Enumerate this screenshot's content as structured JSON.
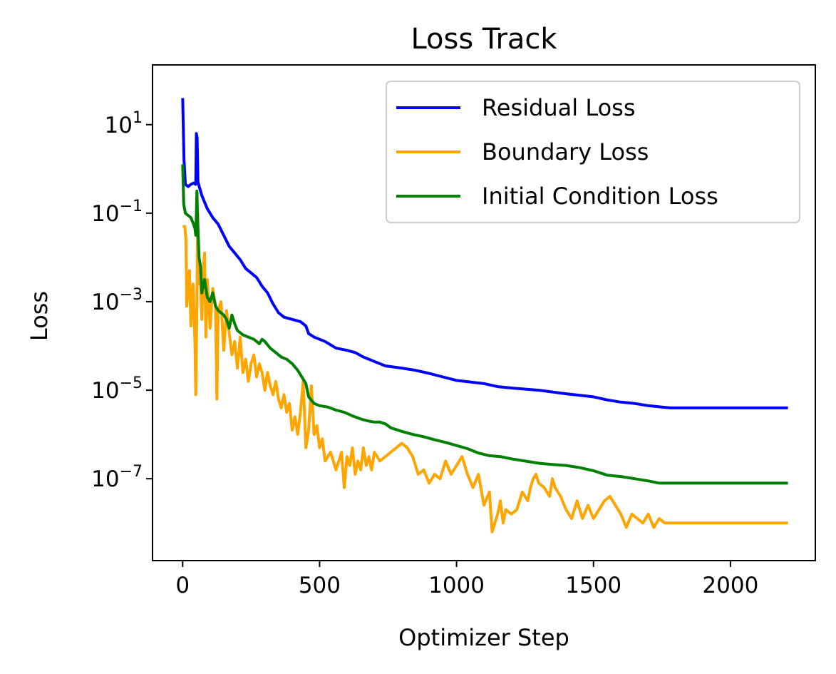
{
  "chart_data": {
    "type": "line",
    "title": "Loss Track",
    "xlabel": "Optimizer Step",
    "ylabel": "Loss",
    "yscale": "log",
    "xlim": [
      -110,
      2310
    ],
    "ylim_log10": [
      -8.85,
      2.35
    ],
    "xticks": [
      0,
      500,
      1000,
      1500,
      2000
    ],
    "xtick_labels": [
      "0",
      "500",
      "1000",
      "1500",
      "2000"
    ],
    "yticks": [
      {
        "value": 1,
        "base": "10",
        "exp": "1"
      },
      {
        "value": -1,
        "base": "10",
        "exp": "−1"
      },
      {
        "value": -3,
        "base": "10",
        "exp": "−3"
      },
      {
        "value": -5,
        "base": "10",
        "exp": "−5"
      },
      {
        "value": -7,
        "base": "10",
        "exp": "−7"
      }
    ],
    "legend_position": "top-right",
    "series": [
      {
        "name": "Residual Loss",
        "color": "#0000ff",
        "points": [
          [
            0,
            1.6
          ],
          [
            5,
            0.2
          ],
          [
            10,
            -0.35
          ],
          [
            20,
            -0.4
          ],
          [
            30,
            -0.35
          ],
          [
            40,
            -0.32
          ],
          [
            48,
            -0.35
          ],
          [
            50,
            0.8
          ],
          [
            53,
            0.7
          ],
          [
            56,
            -0.3
          ],
          [
            70,
            -0.6
          ],
          [
            90,
            -0.9
          ],
          [
            110,
            -1.1
          ],
          [
            130,
            -1.25
          ],
          [
            150,
            -1.5
          ],
          [
            170,
            -1.75
          ],
          [
            190,
            -1.9
          ],
          [
            210,
            -2.05
          ],
          [
            230,
            -2.25
          ],
          [
            250,
            -2.35
          ],
          [
            270,
            -2.45
          ],
          [
            290,
            -2.65
          ],
          [
            310,
            -2.8
          ],
          [
            330,
            -3.05
          ],
          [
            350,
            -3.25
          ],
          [
            370,
            -3.35
          ],
          [
            400,
            -3.4
          ],
          [
            430,
            -3.45
          ],
          [
            440,
            -3.5
          ],
          [
            450,
            -3.55
          ],
          [
            460,
            -3.72
          ],
          [
            480,
            -3.8
          ],
          [
            500,
            -3.85
          ],
          [
            520,
            -3.9
          ],
          [
            560,
            -4.05
          ],
          [
            600,
            -4.1
          ],
          [
            630,
            -4.15
          ],
          [
            660,
            -4.25
          ],
          [
            700,
            -4.35
          ],
          [
            740,
            -4.45
          ],
          [
            800,
            -4.5
          ],
          [
            850,
            -4.55
          ],
          [
            900,
            -4.62
          ],
          [
            950,
            -4.7
          ],
          [
            1000,
            -4.78
          ],
          [
            1100,
            -4.85
          ],
          [
            1150,
            -4.92
          ],
          [
            1200,
            -4.95
          ],
          [
            1300,
            -5.0
          ],
          [
            1400,
            -5.08
          ],
          [
            1500,
            -5.15
          ],
          [
            1550,
            -5.22
          ],
          [
            1600,
            -5.27
          ],
          [
            1650,
            -5.3
          ],
          [
            1700,
            -5.35
          ],
          [
            1750,
            -5.38
          ],
          [
            1780,
            -5.4
          ],
          [
            2210,
            -5.4
          ]
        ]
      },
      {
        "name": "Boundary Loss",
        "color": "#ffa500",
        "points": [
          [
            0,
            -1.3
          ],
          [
            8,
            -1.3
          ],
          [
            12,
            -1.6
          ],
          [
            15,
            -3.1
          ],
          [
            20,
            -2.7
          ],
          [
            25,
            -2.3
          ],
          [
            30,
            -3.55
          ],
          [
            38,
            -2.6
          ],
          [
            45,
            -4.0
          ],
          [
            48,
            -5.1
          ],
          [
            52,
            -3.0
          ],
          [
            55,
            -1.0
          ],
          [
            60,
            -2.6
          ],
          [
            65,
            -2.5
          ],
          [
            70,
            -3.4
          ],
          [
            75,
            -2.3
          ],
          [
            80,
            -1.9
          ],
          [
            85,
            -3.8
          ],
          [
            90,
            -2.5
          ],
          [
            100,
            -3.6
          ],
          [
            110,
            -2.7
          ],
          [
            120,
            -3.1
          ],
          [
            125,
            -5.2
          ],
          [
            130,
            -3.2
          ],
          [
            140,
            -3.0
          ],
          [
            150,
            -4.1
          ],
          [
            160,
            -3.2
          ],
          [
            170,
            -3.7
          ],
          [
            180,
            -4.2
          ],
          [
            190,
            -3.9
          ],
          [
            200,
            -4.5
          ],
          [
            210,
            -3.8
          ],
          [
            220,
            -4.6
          ],
          [
            230,
            -4.3
          ],
          [
            240,
            -4.8
          ],
          [
            250,
            -4.4
          ],
          [
            260,
            -4.2
          ],
          [
            270,
            -4.7
          ],
          [
            280,
            -4.4
          ],
          [
            290,
            -4.6
          ],
          [
            300,
            -5.0
          ],
          [
            310,
            -4.6
          ],
          [
            320,
            -4.9
          ],
          [
            330,
            -5.1
          ],
          [
            340,
            -4.8
          ],
          [
            350,
            -5.2
          ],
          [
            360,
            -5.4
          ],
          [
            370,
            -5.1
          ],
          [
            380,
            -5.5
          ],
          [
            390,
            -5.3
          ],
          [
            400,
            -5.9
          ],
          [
            410,
            -5.6
          ],
          [
            420,
            -6.0
          ],
          [
            430,
            -5.5
          ],
          [
            440,
            -4.8
          ],
          [
            450,
            -6.3
          ],
          [
            460,
            -5.9
          ],
          [
            470,
            -4.9
          ],
          [
            480,
            -6.0
          ],
          [
            490,
            -5.8
          ],
          [
            500,
            -6.3
          ],
          [
            510,
            -6.1
          ],
          [
            520,
            -6.6
          ],
          [
            540,
            -6.4
          ],
          [
            560,
            -6.8
          ],
          [
            580,
            -6.4
          ],
          [
            590,
            -7.2
          ],
          [
            600,
            -6.5
          ],
          [
            610,
            -6.7
          ],
          [
            620,
            -6.3
          ],
          [
            630,
            -6.9
          ],
          [
            640,
            -6.6
          ],
          [
            650,
            -6.8
          ],
          [
            660,
            -6.3
          ],
          [
            670,
            -6.7
          ],
          [
            680,
            -6.5
          ],
          [
            690,
            -6.8
          ],
          [
            700,
            -6.4
          ],
          [
            720,
            -6.6
          ],
          [
            740,
            -6.5
          ],
          [
            760,
            -6.4
          ],
          [
            780,
            -6.3
          ],
          [
            800,
            -6.2
          ],
          [
            820,
            -6.3
          ],
          [
            840,
            -6.5
          ],
          [
            860,
            -6.9
          ],
          [
            880,
            -6.8
          ],
          [
            900,
            -7.1
          ],
          [
            920,
            -6.9
          ],
          [
            940,
            -7.0
          ],
          [
            960,
            -6.6
          ],
          [
            980,
            -6.9
          ],
          [
            1000,
            -6.7
          ],
          [
            1020,
            -6.5
          ],
          [
            1040,
            -6.9
          ],
          [
            1060,
            -7.2
          ],
          [
            1080,
            -6.9
          ],
          [
            1100,
            -7.6
          ],
          [
            1120,
            -7.3
          ],
          [
            1130,
            -8.2
          ],
          [
            1150,
            -7.8
          ],
          [
            1160,
            -7.5
          ],
          [
            1170,
            -8.0
          ],
          [
            1180,
            -7.7
          ],
          [
            1200,
            -7.8
          ],
          [
            1220,
            -7.7
          ],
          [
            1240,
            -7.3
          ],
          [
            1260,
            -7.5
          ],
          [
            1270,
            -7.2
          ],
          [
            1280,
            -7.0
          ],
          [
            1290,
            -6.9
          ],
          [
            1300,
            -7.1
          ],
          [
            1320,
            -7.2
          ],
          [
            1340,
            -7.4
          ],
          [
            1350,
            -7.0
          ],
          [
            1360,
            -7.2
          ],
          [
            1380,
            -7.4
          ],
          [
            1400,
            -7.7
          ],
          [
            1420,
            -7.9
          ],
          [
            1440,
            -7.5
          ],
          [
            1460,
            -7.9
          ],
          [
            1480,
            -7.6
          ],
          [
            1500,
            -7.9
          ],
          [
            1520,
            -7.7
          ],
          [
            1540,
            -7.5
          ],
          [
            1560,
            -7.4
          ],
          [
            1580,
            -7.6
          ],
          [
            1600,
            -7.8
          ],
          [
            1620,
            -8.1
          ],
          [
            1640,
            -7.8
          ],
          [
            1660,
            -7.9
          ],
          [
            1680,
            -8.0
          ],
          [
            1700,
            -7.8
          ],
          [
            1720,
            -8.1
          ],
          [
            1740,
            -7.9
          ],
          [
            1760,
            -8.0
          ],
          [
            1780,
            -8.0
          ],
          [
            2210,
            -8.0
          ]
        ]
      },
      {
        "name": "Initial Condition Loss",
        "color": "#008000",
        "points": [
          [
            0,
            0.1
          ],
          [
            4,
            -0.8
          ],
          [
            10,
            -1.0
          ],
          [
            30,
            -1.1
          ],
          [
            40,
            -1.25
          ],
          [
            45,
            -1.35
          ],
          [
            48,
            -1.5
          ],
          [
            52,
            -0.5
          ],
          [
            55,
            -1.2
          ],
          [
            60,
            -2.0
          ],
          [
            65,
            -2.2
          ],
          [
            70,
            -2.8
          ],
          [
            80,
            -2.5
          ],
          [
            90,
            -2.9
          ],
          [
            100,
            -3.0
          ],
          [
            110,
            -2.8
          ],
          [
            120,
            -3.1
          ],
          [
            130,
            -3.2
          ],
          [
            150,
            -3.3
          ],
          [
            160,
            -3.4
          ],
          [
            170,
            -3.6
          ],
          [
            180,
            -3.3
          ],
          [
            190,
            -3.5
          ],
          [
            200,
            -3.65
          ],
          [
            220,
            -3.75
          ],
          [
            240,
            -3.8
          ],
          [
            260,
            -3.85
          ],
          [
            280,
            -3.95
          ],
          [
            290,
            -3.85
          ],
          [
            300,
            -3.9
          ],
          [
            320,
            -4.05
          ],
          [
            340,
            -4.15
          ],
          [
            360,
            -4.25
          ],
          [
            380,
            -4.3
          ],
          [
            400,
            -4.4
          ],
          [
            420,
            -4.55
          ],
          [
            440,
            -4.75
          ],
          [
            450,
            -4.85
          ],
          [
            460,
            -5.15
          ],
          [
            480,
            -5.3
          ],
          [
            500,
            -5.35
          ],
          [
            530,
            -5.38
          ],
          [
            560,
            -5.45
          ],
          [
            590,
            -5.5
          ],
          [
            620,
            -5.58
          ],
          [
            650,
            -5.65
          ],
          [
            680,
            -5.7
          ],
          [
            700,
            -5.72
          ],
          [
            720,
            -5.72
          ],
          [
            740,
            -5.76
          ],
          [
            760,
            -5.85
          ],
          [
            800,
            -5.93
          ],
          [
            840,
            -6.0
          ],
          [
            880,
            -6.05
          ],
          [
            920,
            -6.12
          ],
          [
            960,
            -6.18
          ],
          [
            1000,
            -6.25
          ],
          [
            1040,
            -6.32
          ],
          [
            1080,
            -6.42
          ],
          [
            1120,
            -6.48
          ],
          [
            1160,
            -6.5
          ],
          [
            1200,
            -6.55
          ],
          [
            1250,
            -6.6
          ],
          [
            1300,
            -6.65
          ],
          [
            1350,
            -6.68
          ],
          [
            1400,
            -6.7
          ],
          [
            1450,
            -6.75
          ],
          [
            1500,
            -6.82
          ],
          [
            1550,
            -6.92
          ],
          [
            1600,
            -6.95
          ],
          [
            1650,
            -7.0
          ],
          [
            1700,
            -7.05
          ],
          [
            1740,
            -7.1
          ],
          [
            1780,
            -7.1
          ],
          [
            2210,
            -7.1
          ]
        ]
      }
    ]
  }
}
